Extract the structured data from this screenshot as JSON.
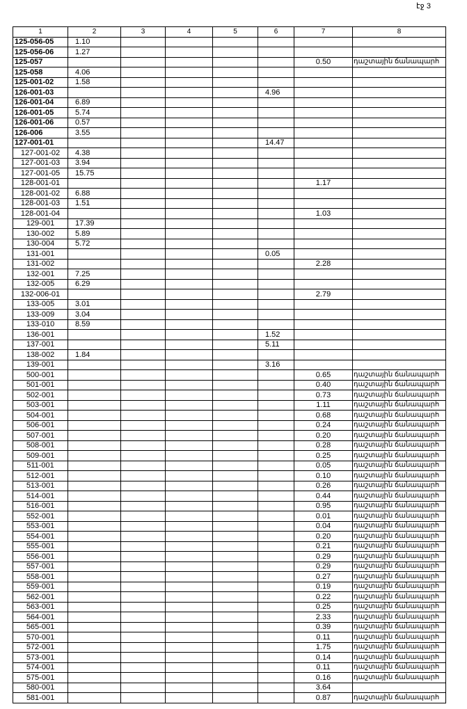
{
  "page_label": "էջ 3",
  "table": {
    "headers": [
      "1",
      "2",
      "3",
      "4",
      "5",
      "6",
      "7",
      "8"
    ],
    "rows": [
      [
        "125-056-05",
        "1.10",
        "",
        "",
        "",
        "",
        "",
        ""
      ],
      [
        "125-056-06",
        "1.27",
        "",
        "",
        "",
        "",
        "",
        ""
      ],
      [
        "125-057",
        "",
        "",
        "",
        "",
        "",
        "0.50",
        "դաշտային ճանապարհ"
      ],
      [
        "125-058",
        "4.06",
        "",
        "",
        "",
        "",
        "",
        ""
      ],
      [
        "125-001-02",
        "1.58",
        "",
        "",
        "",
        "",
        "",
        ""
      ],
      [
        "126-001-03",
        "",
        "",
        "",
        "",
        "4.96",
        "",
        ""
      ],
      [
        "126-001-04",
        "6.89",
        "",
        "",
        "",
        "",
        "",
        ""
      ],
      [
        "126-001-05",
        "5.74",
        "",
        "",
        "",
        "",
        "",
        ""
      ],
      [
        "126-001-06",
        "0.57",
        "",
        "",
        "",
        "",
        "",
        ""
      ],
      [
        "126-006",
        "3.55",
        "",
        "",
        "",
        "",
        "",
        ""
      ],
      [
        "127-001-01",
        "",
        "",
        "",
        "",
        "14.47",
        "",
        ""
      ],
      [
        "127-001-02",
        "4.38",
        "",
        "",
        "",
        "",
        "",
        ""
      ],
      [
        "127-001-03",
        "3.94",
        "",
        "",
        "",
        "",
        "",
        ""
      ],
      [
        "127-001-05",
        "15.75",
        "",
        "",
        "",
        "",
        "",
        ""
      ],
      [
        "128-001-01",
        "",
        "",
        "",
        "",
        "",
        "1.17",
        ""
      ],
      [
        "128-001-02",
        "6.88",
        "",
        "",
        "",
        "",
        "",
        ""
      ],
      [
        "128-001-03",
        "1.51",
        "",
        "",
        "",
        "",
        "",
        ""
      ],
      [
        "128-001-04",
        "",
        "",
        "",
        "",
        "",
        "1.03",
        ""
      ],
      [
        "129-001",
        "17.39",
        "",
        "",
        "",
        "",
        "",
        ""
      ],
      [
        "130-002",
        "5.89",
        "",
        "",
        "",
        "",
        "",
        ""
      ],
      [
        "130-004",
        "5.72",
        "",
        "",
        "",
        "",
        "",
        ""
      ],
      [
        "131-001",
        "",
        "",
        "",
        "",
        "0.05",
        "",
        ""
      ],
      [
        "131-002",
        "",
        "",
        "",
        "",
        "",
        "2.28",
        ""
      ],
      [
        "132-001",
        "7.25",
        "",
        "",
        "",
        "",
        "",
        ""
      ],
      [
        "132-005",
        "6.29",
        "",
        "",
        "",
        "",
        "",
        ""
      ],
      [
        "132-006-01",
        "",
        "",
        "",
        "",
        "",
        "2.79",
        ""
      ],
      [
        "133-005",
        "3.01",
        "",
        "",
        "",
        "",
        "",
        ""
      ],
      [
        "133-009",
        "3.04",
        "",
        "",
        "",
        "",
        "",
        ""
      ],
      [
        "133-010",
        "8.59",
        "",
        "",
        "",
        "",
        "",
        ""
      ],
      [
        "136-001",
        "",
        "",
        "",
        "",
        "1.52",
        "",
        ""
      ],
      [
        "137-001",
        "",
        "",
        "",
        "",
        "5.11",
        "",
        ""
      ],
      [
        "138-002",
        "1.84",
        "",
        "",
        "",
        "",
        "",
        ""
      ],
      [
        "139-001",
        "",
        "",
        "",
        "",
        "3.16",
        "",
        ""
      ],
      [
        "500-001",
        "",
        "",
        "",
        "",
        "",
        "0.65",
        "դաշտային ճանապարհ"
      ],
      [
        "501-001",
        "",
        "",
        "",
        "",
        "",
        "0.40",
        "դաշտային ճանապարհ"
      ],
      [
        "502-001",
        "",
        "",
        "",
        "",
        "",
        "0.73",
        "դաշտային ճանապարհ"
      ],
      [
        "503-001",
        "",
        "",
        "",
        "",
        "",
        "1.11",
        "դաշտային ճանապարհ"
      ],
      [
        "504-001",
        "",
        "",
        "",
        "",
        "",
        "0.68",
        "դաշտային ճանապարհ"
      ],
      [
        "506-001",
        "",
        "",
        "",
        "",
        "",
        "0.24",
        "դաշտային ճանապարհ"
      ],
      [
        "507-001",
        "",
        "",
        "",
        "",
        "",
        "0.20",
        "դաշտային ճանապարհ"
      ],
      [
        "508-001",
        "",
        "",
        "",
        "",
        "",
        "0.28",
        "դաշտային ճանապարհ"
      ],
      [
        "509-001",
        "",
        "",
        "",
        "",
        "",
        "0.25",
        "դաշտային ճանապարհ"
      ],
      [
        "511-001",
        "",
        "",
        "",
        "",
        "",
        "0.05",
        "դաշտային ճանապարհ"
      ],
      [
        "512-001",
        "",
        "",
        "",
        "",
        "",
        "0.10",
        "դաշտային ճանապարհ"
      ],
      [
        "513-001",
        "",
        "",
        "",
        "",
        "",
        "0.26",
        "դաշտային ճանապարհ"
      ],
      [
        "514-001",
        "",
        "",
        "",
        "",
        "",
        "0.44",
        "դաշտային ճանապարհ"
      ],
      [
        "516-001",
        "",
        "",
        "",
        "",
        "",
        "0.95",
        "դաշտային ճանապարհ"
      ],
      [
        "552-001",
        "",
        "",
        "",
        "",
        "",
        "0.01",
        "դաշտային ճանապարհ"
      ],
      [
        "553-001",
        "",
        "",
        "",
        "",
        "",
        "0.04",
        "դաշտային ճանապարհ"
      ],
      [
        "554-001",
        "",
        "",
        "",
        "",
        "",
        "0.20",
        "դաշտային ճանապարհ"
      ],
      [
        "555-001",
        "",
        "",
        "",
        "",
        "",
        "0.21",
        "դաշտային ճանապարհ"
      ],
      [
        "556-001",
        "",
        "",
        "",
        "",
        "",
        "0.29",
        "դաշտային ճանապարհ"
      ],
      [
        "557-001",
        "",
        "",
        "",
        "",
        "",
        "0.29",
        "դաշտային ճանապարհ"
      ],
      [
        "558-001",
        "",
        "",
        "",
        "",
        "",
        "0.27",
        "դաշտային ճանապարհ"
      ],
      [
        "559-001",
        "",
        "",
        "",
        "",
        "",
        "0.19",
        "դաշտային ճանապարհ"
      ],
      [
        "562-001",
        "",
        "",
        "",
        "",
        "",
        "0.22",
        "դաշտային ճանապարհ"
      ],
      [
        "563-001",
        "",
        "",
        "",
        "",
        "",
        "0.25",
        "դաշտային ճանապարհ"
      ],
      [
        "564-001",
        "",
        "",
        "",
        "",
        "",
        "2.33",
        "դաշտային ճանապարհ"
      ],
      [
        "565-001",
        "",
        "",
        "",
        "",
        "",
        "0.39",
        "դաշտային ճանապարհ"
      ],
      [
        "570-001",
        "",
        "",
        "",
        "",
        "",
        "0.11",
        "դաշտային ճանապարհ"
      ],
      [
        "572-001",
        "",
        "",
        "",
        "",
        "",
        "1.75",
        "դաշտային ճանապարհ"
      ],
      [
        "573-001",
        "",
        "",
        "",
        "",
        "",
        "0.14",
        "դաշտային ճանապարհ"
      ],
      [
        "574-001",
        "",
        "",
        "",
        "",
        "",
        "0.11",
        "դաշտային ճանապարհ"
      ],
      [
        "575-001",
        "",
        "",
        "",
        "",
        "",
        "0.16",
        "դաշտային ճանապարհ"
      ],
      [
        "580-001",
        "",
        "",
        "",
        "",
        "",
        "3.64",
        ""
      ],
      [
        "581-001",
        "",
        "",
        "",
        "",
        "",
        "0.87",
        "դաշտային ճանապարհ"
      ]
    ]
  }
}
